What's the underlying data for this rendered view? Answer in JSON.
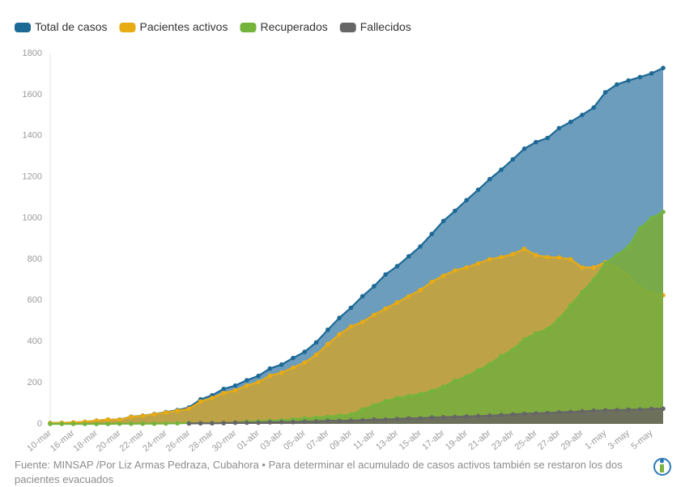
{
  "chart_data": {
    "type": "area",
    "categories": [
      "10-mar",
      null,
      "16-mar",
      null,
      "18-mar",
      null,
      "20-mar",
      null,
      "22-mar",
      null,
      "24-mar",
      null,
      "26-mar",
      null,
      "28-mar",
      null,
      "30-mar",
      null,
      "01-abr",
      null,
      "03-abr",
      null,
      "05-abr",
      null,
      "07-abr",
      null,
      "09-abr",
      null,
      "11-abr",
      null,
      "13-abr",
      null,
      "15-abr",
      null,
      "17-abr",
      null,
      "19-abr",
      null,
      "21-abr",
      null,
      "23-abr",
      null,
      "25-abr",
      null,
      "27-abr",
      null,
      "29-abr",
      null,
      "1-may",
      null,
      "3-may",
      null,
      "5-may",
      null
    ],
    "series": [
      {
        "name": "Total de casos",
        "color": "#1d6996",
        "fill": "#5f95b6",
        "values": [
          4,
          5,
          7,
          10,
          16,
          21,
          21,
          35,
          40,
          48,
          57,
          67,
          80,
          119,
          139,
          170,
          186,
          212,
          233,
          269,
          288,
          320,
          350,
          396,
          457,
          515,
          564,
          620,
          669,
          726,
          766,
          814,
          862,
          923,
          986,
          1035,
          1087,
          1137,
          1189,
          1235,
          1285,
          1337,
          1369,
          1389,
          1437,
          1467,
          1501,
          1537,
          1611,
          1649,
          1668,
          1685,
          1703,
          1729
        ]
      },
      {
        "name": "Pacientes activos",
        "color": "#e8ab13",
        "fill": "#c6a33d",
        "values": [
          4,
          5,
          7,
          10,
          16,
          21,
          20,
          34,
          39,
          47,
          55,
          64,
          74,
          109,
          126,
          150,
          163,
          186,
          203,
          234,
          249,
          273,
          298,
          336,
          388,
          435,
          473,
          495,
          530,
          560,
          590,
          620,
          650,
          690,
          720,
          745,
          760,
          780,
          800,
          810,
          825,
          850,
          820,
          810,
          808,
          800,
          760,
          760,
          785,
          760,
          720,
          660,
          635,
          625
        ]
      },
      {
        "name": "Recuperados",
        "color": "#74b43c",
        "fill": "#7aab3f",
        "values": [
          0,
          0,
          0,
          0,
          0,
          0,
          1,
          1,
          1,
          1,
          2,
          3,
          4,
          4,
          4,
          4,
          6,
          11,
          12,
          15,
          18,
          22,
          27,
          30,
          35,
          40,
          45,
          70,
          90,
          110,
          125,
          135,
          145,
          160,
          180,
          210,
          230,
          260,
          290,
          330,
          360,
          410,
          440,
          460,
          510,
          575,
          640,
          700,
          780,
          820,
          860,
          950,
          1000,
          1030
        ]
      },
      {
        "name": "Fallecidos",
        "color": "#666666",
        "fill": "#6b6b5e",
        "values": [
          null,
          null,
          null,
          null,
          null,
          null,
          null,
          null,
          null,
          null,
          null,
          null,
          2,
          3,
          3,
          4,
          6,
          6,
          6,
          8,
          9,
          9,
          11,
          12,
          15,
          15,
          16,
          18,
          21,
          21,
          24,
          27,
          27,
          31,
          32,
          34,
          36,
          38,
          40,
          43,
          46,
          49,
          51,
          53,
          56,
          58,
          61,
          64,
          66,
          67,
          69,
          70,
          73,
          74
        ]
      }
    ],
    "ylim": [
      0,
      1800
    ],
    "yticks": [
      0,
      200,
      400,
      600,
      800,
      1000,
      1200,
      1400,
      1600,
      1800
    ],
    "grid": false,
    "source": "Fuente: MINSAP /Por Liz Armas Pedraza, Cubahora • Para determinar el acumulado de casos activos también se restaron los dos pacientes evacuados"
  }
}
